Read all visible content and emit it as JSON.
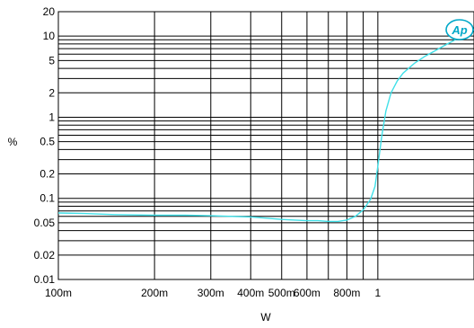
{
  "chart_data": {
    "type": "line",
    "xlabel": "W",
    "ylabel": "%",
    "xscale": "log",
    "yscale": "log",
    "xlim": [
      0.1,
      2.0
    ],
    "ylim": [
      0.01,
      20
    ],
    "grid": true,
    "x_tick_labels": [
      {
        "value": 0.1,
        "label": "100m"
      },
      {
        "value": 0.2,
        "label": "200m"
      },
      {
        "value": 0.3,
        "label": "300m"
      },
      {
        "value": 0.4,
        "label": "400m"
      },
      {
        "value": 0.5,
        "label": "500m"
      },
      {
        "value": 0.6,
        "label": "600m"
      },
      {
        "value": 0.8,
        "label": "800m"
      },
      {
        "value": 1.0,
        "label": "1"
      }
    ],
    "x_grid_values": [
      0.1,
      0.2,
      0.3,
      0.4,
      0.5,
      0.6,
      0.7,
      0.8,
      0.9,
      1.0,
      2.0
    ],
    "y_tick_labels": [
      {
        "value": 0.01,
        "label": "0.01"
      },
      {
        "value": 0.02,
        "label": "0.02"
      },
      {
        "value": 0.05,
        "label": "0.05"
      },
      {
        "value": 0.1,
        "label": "0.1"
      },
      {
        "value": 0.2,
        "label": "0.2"
      },
      {
        "value": 0.5,
        "label": "0.5"
      },
      {
        "value": 1,
        "label": "1"
      },
      {
        "value": 2,
        "label": "2"
      },
      {
        "value": 5,
        "label": "5"
      },
      {
        "value": 10,
        "label": "10"
      },
      {
        "value": 20,
        "label": "20"
      }
    ],
    "y_grid_values": [
      0.01,
      0.02,
      0.03,
      0.04,
      0.05,
      0.06,
      0.07,
      0.08,
      0.09,
      0.1,
      0.2,
      0.3,
      0.4,
      0.5,
      0.6,
      0.7,
      0.8,
      0.9,
      1,
      2,
      3,
      4,
      5,
      6,
      7,
      8,
      9,
      10,
      20
    ],
    "series": [
      {
        "color": "#40e0e8",
        "points": [
          [
            0.1,
            0.066
          ],
          [
            0.12,
            0.065
          ],
          [
            0.15,
            0.063
          ],
          [
            0.2,
            0.062
          ],
          [
            0.25,
            0.062
          ],
          [
            0.3,
            0.061
          ],
          [
            0.35,
            0.06
          ],
          [
            0.4,
            0.059
          ],
          [
            0.45,
            0.057
          ],
          [
            0.5,
            0.055
          ],
          [
            0.55,
            0.054
          ],
          [
            0.6,
            0.053
          ],
          [
            0.65,
            0.053
          ],
          [
            0.7,
            0.052
          ],
          [
            0.75,
            0.052
          ],
          [
            0.8,
            0.054
          ],
          [
            0.85,
            0.06
          ],
          [
            0.9,
            0.072
          ],
          [
            0.95,
            0.098
          ],
          [
            0.98,
            0.14
          ],
          [
            1.0,
            0.25
          ],
          [
            1.03,
            0.6
          ],
          [
            1.06,
            1.2
          ],
          [
            1.1,
            2.0
          ],
          [
            1.15,
            2.8
          ],
          [
            1.2,
            3.5
          ],
          [
            1.3,
            4.6
          ],
          [
            1.4,
            5.6
          ],
          [
            1.5,
            6.5
          ],
          [
            1.6,
            7.5
          ],
          [
            1.7,
            8.5
          ],
          [
            1.8,
            9.6
          ],
          [
            1.9,
            10.8
          ],
          [
            2.0,
            12.0
          ]
        ]
      }
    ]
  },
  "logo": {
    "text": "Ap"
  }
}
